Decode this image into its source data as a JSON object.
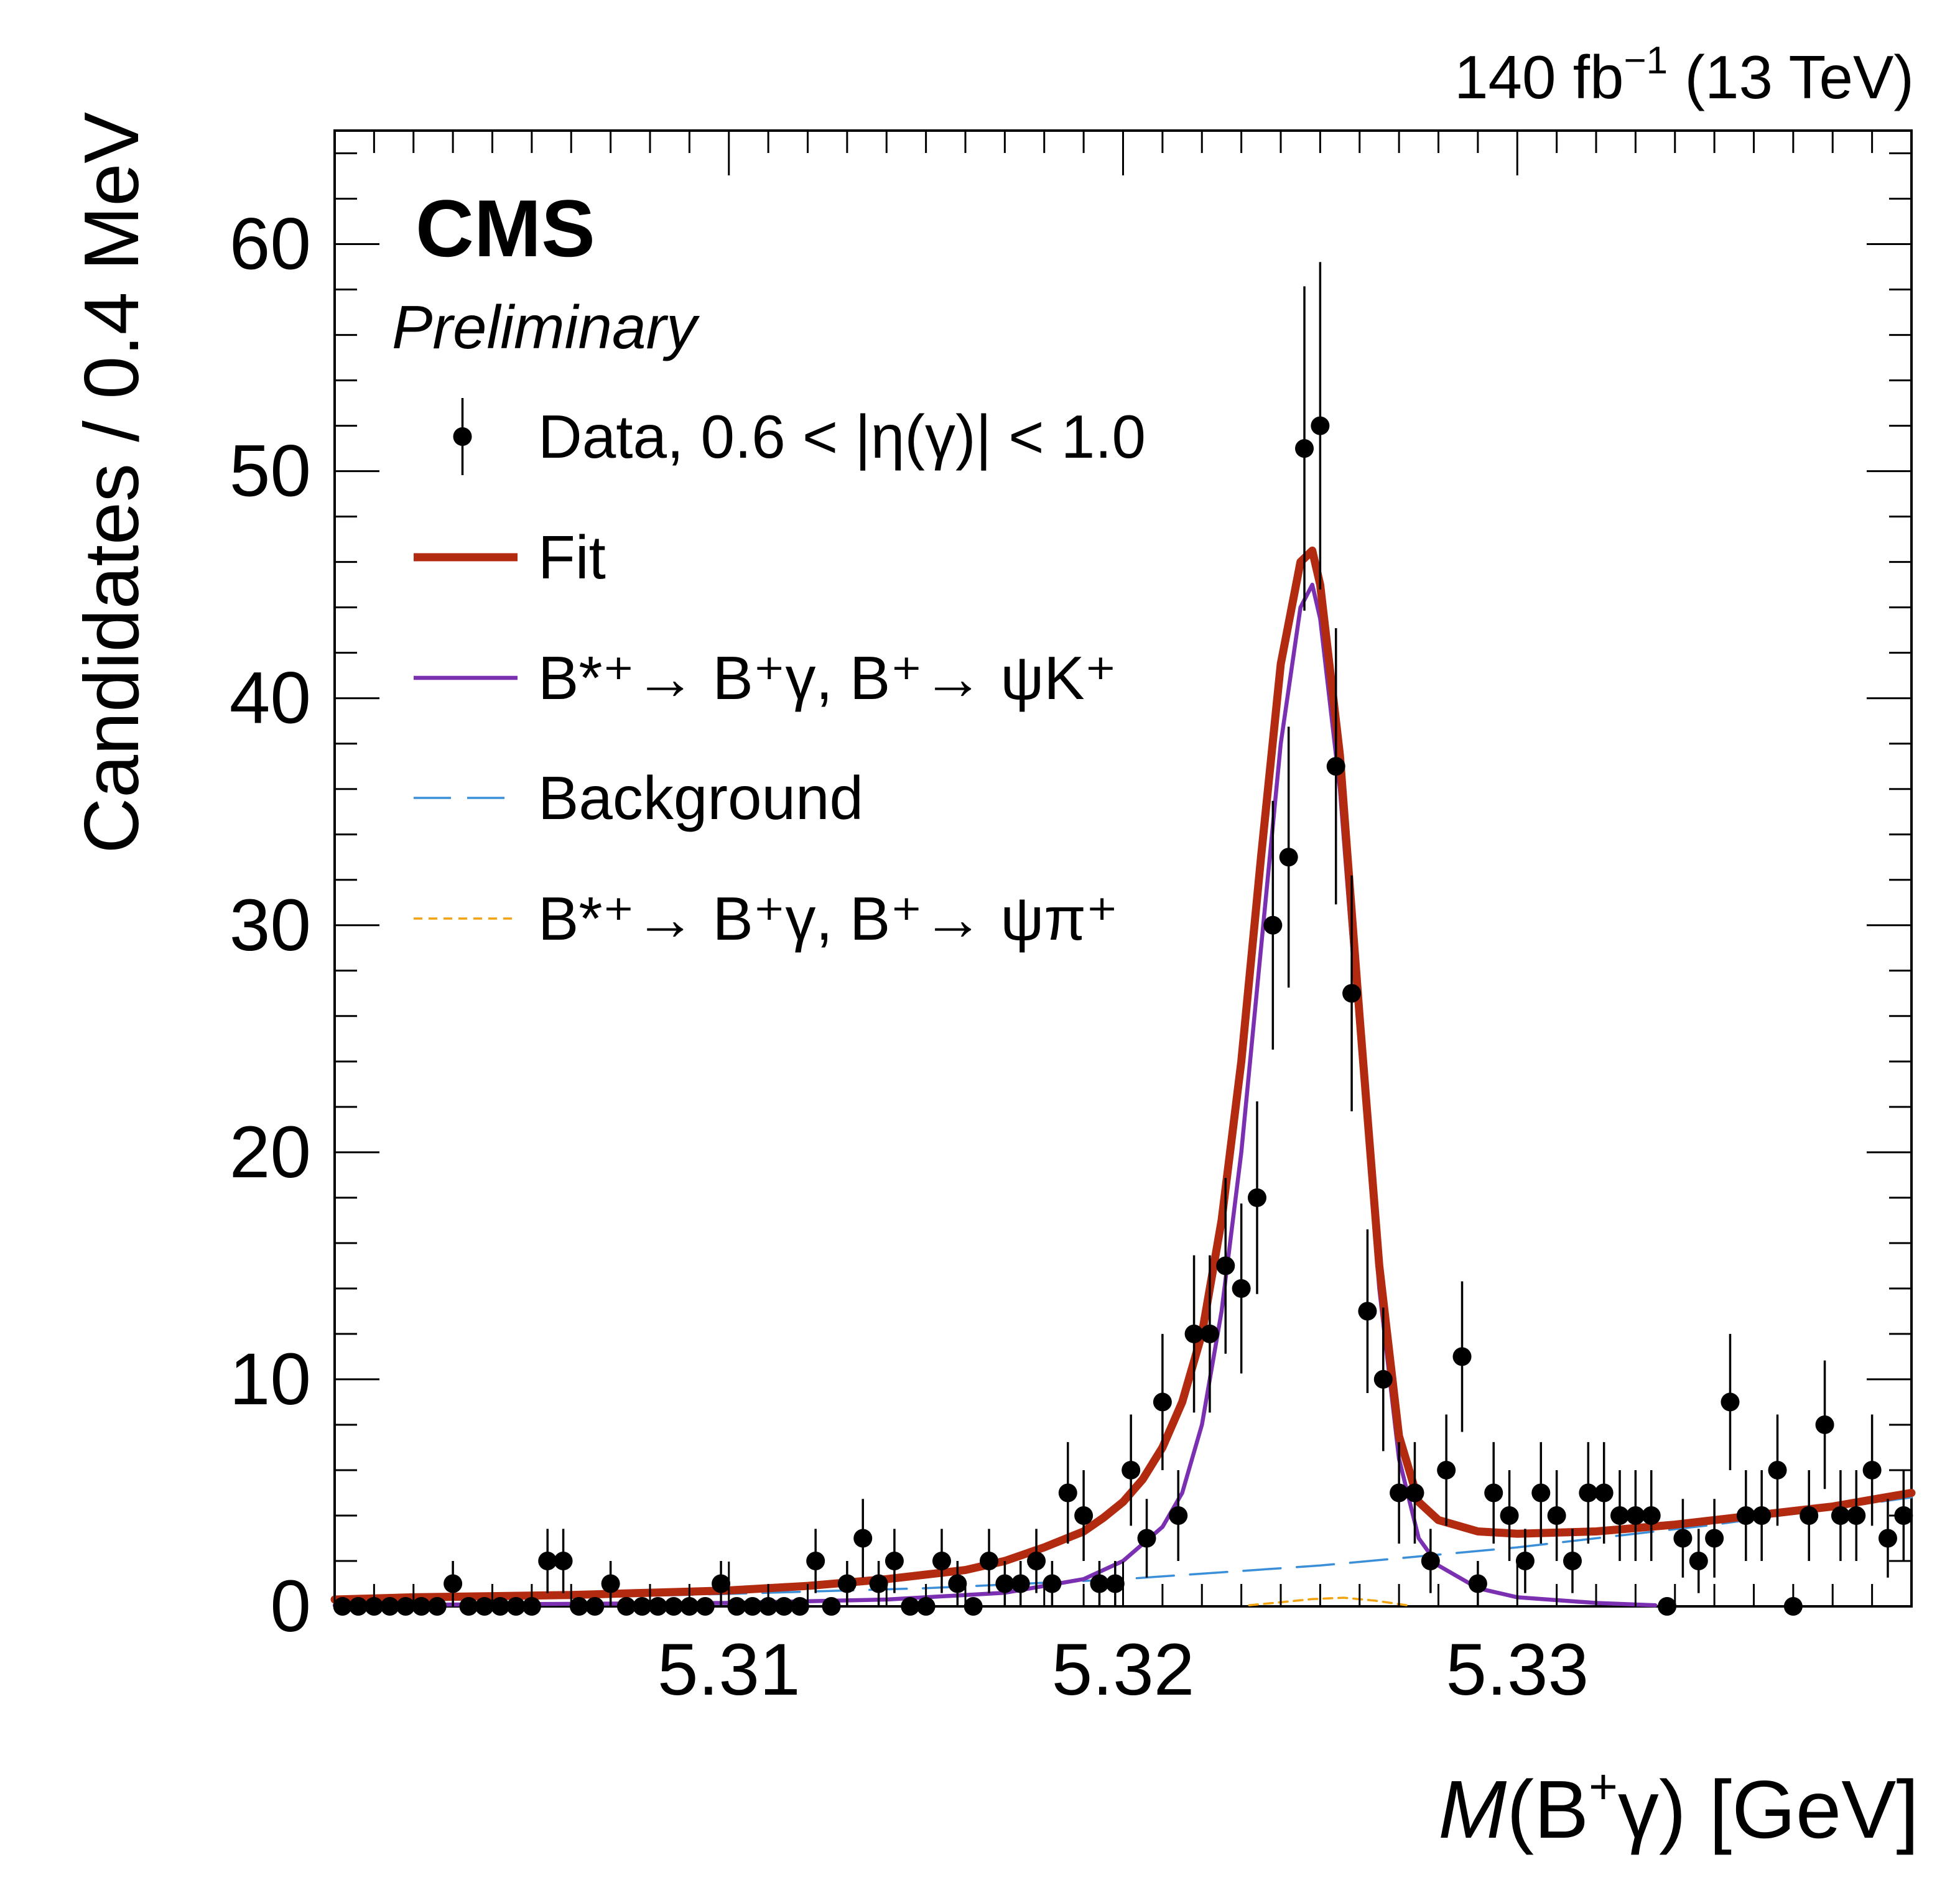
{
  "header": {
    "lumi": "140 fb",
    "lumi_sup": "−1",
    "energy": " (13 TeV)"
  },
  "labels": {
    "experiment": "CMS",
    "status": "Preliminary"
  },
  "chart_data": {
    "type": "scatter",
    "title": "",
    "xlabel": {
      "italic": "M",
      "open": "(B",
      "sup": "+",
      "close": "γ) [GeV]"
    },
    "ylabel": "Candidates / 0.4 MeV",
    "xlim": [
      5.3,
      5.34
    ],
    "ylim": [
      0,
      65
    ],
    "x_ticks": [
      5.31,
      5.32,
      5.33
    ],
    "x_tick_labels": [
      "5.31",
      "5.32",
      "5.33"
    ],
    "y_ticks": [
      0,
      10,
      20,
      30,
      40,
      50,
      60
    ],
    "y_tick_labels": [
      "0",
      "10",
      "20",
      "30",
      "40",
      "50",
      "60"
    ],
    "bin_width": 0.0004,
    "legend_position": "top-left",
    "legend": [
      {
        "key": "data",
        "style": "marker",
        "color": "#000000",
        "text": "Data, 0.6 < |η(γ)| < 1.0"
      },
      {
        "key": "fit",
        "style": "thick",
        "color": "#b22a10",
        "text": "Fit"
      },
      {
        "key": "sigK",
        "style": "solid",
        "color": "#7b2fb1",
        "text": "B*⁺→ B⁺γ, B⁺→ ψK⁺"
      },
      {
        "key": "bkg",
        "style": "longdash",
        "color": "#3b8fd9",
        "text": "Background"
      },
      {
        "key": "sigPi",
        "style": "dotted",
        "color": "#f2a30f",
        "text": "B*⁺→ B⁺γ, B⁺→ ψπ⁺"
      }
    ],
    "series": [
      {
        "key": "data",
        "type": "scatter",
        "x_start": 5.3002,
        "bin_width": 0.0004,
        "values": [
          0,
          0,
          0,
          0,
          0,
          0,
          0,
          1,
          0,
          0,
          0,
          0,
          0,
          2,
          2,
          0,
          0,
          1,
          0,
          0,
          0,
          0,
          0,
          0,
          1,
          0,
          0,
          0,
          0,
          0,
          2,
          0,
          1,
          3,
          1,
          2,
          0,
          0,
          2,
          1,
          0,
          2,
          1,
          1,
          2,
          1,
          5,
          4,
          1,
          1,
          6,
          3,
          9,
          4,
          12,
          12,
          15,
          14,
          18,
          30,
          33,
          51,
          52,
          37,
          27,
          13,
          10,
          5,
          5,
          2,
          6,
          11,
          1,
          5,
          4,
          2,
          5,
          4,
          2,
          5,
          5,
          4,
          4,
          4,
          0,
          3,
          2,
          3,
          9,
          4,
          4,
          6,
          0,
          4,
          8,
          4,
          4,
          6,
          3,
          4
        ]
      },
      {
        "key": "fit",
        "type": "line",
        "color": "#b22a10",
        "x": [
          5.3,
          5.302,
          5.304,
          5.306,
          5.308,
          5.31,
          5.312,
          5.314,
          5.316,
          5.317,
          5.318,
          5.319,
          5.3195,
          5.32,
          5.3205,
          5.321,
          5.3215,
          5.322,
          5.3225,
          5.323,
          5.3235,
          5.324,
          5.3245,
          5.3248,
          5.325,
          5.3255,
          5.326,
          5.3265,
          5.327,
          5.3275,
          5.328,
          5.329,
          5.33,
          5.332,
          5.334,
          5.336,
          5.338,
          5.34
        ],
        "y": [
          0.3,
          0.4,
          0.45,
          0.5,
          0.6,
          0.7,
          0.9,
          1.2,
          1.6,
          2.0,
          2.6,
          3.3,
          3.9,
          4.6,
          5.6,
          7.0,
          9.0,
          12.0,
          17.0,
          24.0,
          33.0,
          41.5,
          46.0,
          46.5,
          45.0,
          37.5,
          26.0,
          15.0,
          7.5,
          4.6,
          3.8,
          3.3,
          3.2,
          3.3,
          3.6,
          4.0,
          4.4,
          5.0
        ]
      },
      {
        "key": "sigK",
        "type": "line",
        "color": "#7b2fb1",
        "x": [
          5.3,
          5.305,
          5.31,
          5.314,
          5.317,
          5.319,
          5.32,
          5.321,
          5.3215,
          5.322,
          5.3225,
          5.323,
          5.3235,
          5.324,
          5.3245,
          5.3248,
          5.325,
          5.3255,
          5.326,
          5.3265,
          5.327,
          5.3275,
          5.328,
          5.329,
          5.33,
          5.332,
          5.3335
        ],
        "y": [
          0.05,
          0.1,
          0.15,
          0.3,
          0.6,
          1.2,
          2.0,
          3.5,
          5.0,
          8.0,
          13.0,
          20.0,
          29.0,
          38.0,
          44.0,
          45.0,
          43.5,
          36.0,
          25.0,
          14.0,
          6.5,
          3.0,
          1.8,
          0.8,
          0.4,
          0.15,
          0.05
        ]
      },
      {
        "key": "bkg",
        "type": "line",
        "color": "#3b8fd9",
        "x": [
          5.3,
          5.305,
          5.31,
          5.315,
          5.32,
          5.325,
          5.33,
          5.335,
          5.34
        ],
        "y": [
          0.2,
          0.35,
          0.55,
          0.8,
          1.2,
          1.8,
          2.6,
          3.6,
          4.8
        ]
      },
      {
        "key": "sigPi",
        "type": "line",
        "color": "#f2a30f",
        "x": [
          5.3232,
          5.324,
          5.3248,
          5.3256,
          5.3264,
          5.3272
        ],
        "y": [
          0.05,
          0.18,
          0.32,
          0.38,
          0.25,
          0.05
        ]
      }
    ]
  }
}
